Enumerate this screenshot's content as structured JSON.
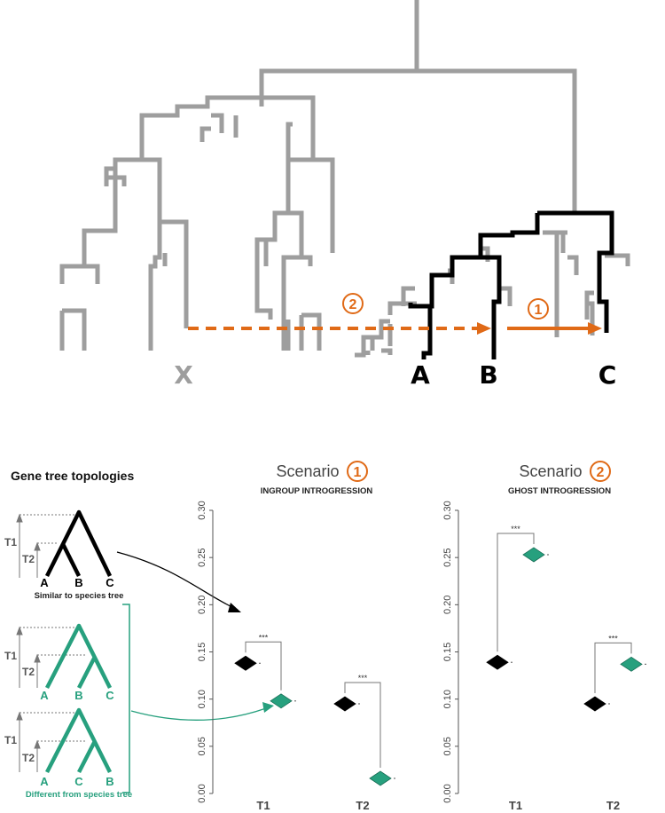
{
  "colors": {
    "grey": "#9e9e9e",
    "black": "#000000",
    "orange": "#e06a17",
    "green": "#27a07e"
  },
  "species_tree": {
    "tips": {
      "x": "X",
      "a": "A",
      "b": "B",
      "c": "C"
    },
    "arrow_labels": {
      "scenario2": "2",
      "scenario1": "1"
    }
  },
  "legend": {
    "title": "Gene tree topologies",
    "topologies": [
      {
        "tips": [
          "A",
          "B",
          "C"
        ],
        "group": "similar"
      },
      {
        "tips": [
          "A",
          "B",
          "C"
        ],
        "group": "different"
      },
      {
        "tips": [
          "A",
          "C",
          "B"
        ],
        "group": "different"
      }
    ],
    "time_labels": {
      "t1": "T1",
      "t2": "T2"
    },
    "similar_label": "Similar to species tree",
    "different_label": "Different from species tree"
  },
  "scenarios": [
    {
      "word": "Scenario",
      "number": "1",
      "subtitle": "INGROUP INTROGRESSION"
    },
    {
      "word": "Scenario",
      "number": "2",
      "subtitle": "GHOST INTROGRESSION"
    }
  ],
  "significance": "***",
  "chart_data": [
    {
      "type": "scatter",
      "title": "Scenario 1 — INGROUP INTROGRESSION",
      "categories": [
        "T1",
        "T2"
      ],
      "ylim": [
        0,
        0.3
      ],
      "yticks": [
        "0.00",
        "0.05",
        "0.10",
        "0.15",
        "0.20",
        "0.25",
        "0.30"
      ],
      "series": [
        {
          "name": "Similar to species tree",
          "values": [
            0.138,
            0.095
          ]
        },
        {
          "name": "Different from species tree",
          "values": [
            0.098,
            0.016
          ]
        }
      ]
    },
    {
      "type": "scatter",
      "title": "Scenario 2 — GHOST INTROGRESSION",
      "categories": [
        "T1",
        "T2"
      ],
      "ylim": [
        0,
        0.3
      ],
      "yticks": [
        "0.00",
        "0.05",
        "0.10",
        "0.15",
        "0.20",
        "0.25",
        "0.30"
      ],
      "series": [
        {
          "name": "Similar to species tree",
          "values": [
            0.139,
            0.095
          ]
        },
        {
          "name": "Different from species tree",
          "values": [
            0.253,
            0.137
          ]
        }
      ]
    }
  ]
}
